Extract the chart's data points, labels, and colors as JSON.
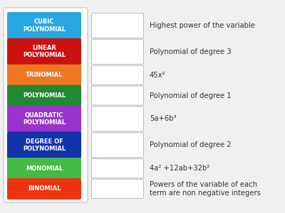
{
  "background_color": "#f0f0f0",
  "outer_border_color": "#cccccc",
  "items": [
    {
      "label": "CUBIC\nPOLYNOMIAL",
      "label_color": "#29a8e0",
      "text": "Highest power of the variable"
    },
    {
      "label": "LINEAR\nPOLYNOMIAL",
      "label_color": "#cc1111",
      "text": "Polynomial of degree 3"
    },
    {
      "label": "TRINOMIAL",
      "label_color": "#ee7722",
      "text": "45x²"
    },
    {
      "label": "POLYNOMIAL",
      "label_color": "#228833",
      "text": "Polynomial of degree 1"
    },
    {
      "label": "QUADRATIC\nPOLYNOMIAL",
      "label_color": "#9933cc",
      "text": "5a+6b³"
    },
    {
      "label": "DEGREE OF\nPOLYNOMIAL",
      "label_color": "#1133aa",
      "text": "Polynomial of degree 2"
    },
    {
      "label": "MONOMIAL",
      "label_color": "#44bb44",
      "text": "4a² +12ab+32b²"
    },
    {
      "label": "BINOMIAL",
      "label_color": "#ee3311",
      "text": "Powers of the variable of each\nterm are non negative integers"
    }
  ],
  "label_text_color": "#ffffff",
  "blank_box_border": "#bbbbbb",
  "text_color": "#333333",
  "label_fontsize": 6.0,
  "text_fontsize": 7.2
}
